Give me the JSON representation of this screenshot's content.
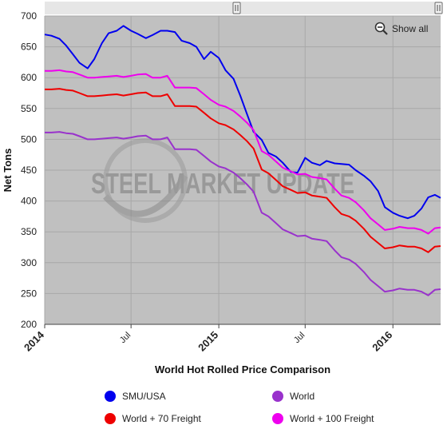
{
  "chart_data": {
    "type": "line",
    "title": "World Hot Rolled Price Comparison",
    "ylabel": "Net Tons",
    "xlabel": "",
    "ylim": [
      200,
      700
    ],
    "yticks": [
      200,
      250,
      300,
      350,
      400,
      450,
      500,
      550,
      600,
      650,
      700
    ],
    "xrange": [
      "2014-01-01",
      "2016-03-15"
    ],
    "xticks": [
      {
        "label": "2014",
        "date": "2014-01-01",
        "major": true
      },
      {
        "label": "Jul",
        "date": "2014-07-01",
        "major": false
      },
      {
        "label": "2015",
        "date": "2015-01-01",
        "major": true
      },
      {
        "label": "Jul",
        "date": "2015-07-01",
        "major": false
      },
      {
        "label": "2016",
        "date": "2016-01-01",
        "major": true
      }
    ],
    "grid": true,
    "legend_position": "bottom",
    "zoom_control": "Show all",
    "watermark": "STEEL MARKET UPDATE",
    "series": [
      {
        "name": "SMU/USA",
        "color": "#0000ee",
        "points": [
          [
            "2014-01-01",
            670
          ],
          [
            "2014-01-15",
            668
          ],
          [
            "2014-02-01",
            663
          ],
          [
            "2014-02-15",
            652
          ],
          [
            "2014-03-01",
            638
          ],
          [
            "2014-03-15",
            624
          ],
          [
            "2014-04-01",
            615
          ],
          [
            "2014-04-15",
            630
          ],
          [
            "2014-05-01",
            656
          ],
          [
            "2014-05-15",
            672
          ],
          [
            "2014-06-01",
            676
          ],
          [
            "2014-06-15",
            684
          ],
          [
            "2014-07-01",
            676
          ],
          [
            "2014-07-15",
            671
          ],
          [
            "2014-08-01",
            664
          ],
          [
            "2014-08-15",
            669
          ],
          [
            "2014-09-01",
            676
          ],
          [
            "2014-09-15",
            676
          ],
          [
            "2014-10-01",
            674
          ],
          [
            "2014-10-15",
            660
          ],
          [
            "2014-11-01",
            656
          ],
          [
            "2014-11-15",
            650
          ],
          [
            "2014-12-01",
            630
          ],
          [
            "2014-12-15",
            642
          ],
          [
            "2015-01-01",
            632
          ],
          [
            "2015-01-15",
            612
          ],
          [
            "2015-02-01",
            598
          ],
          [
            "2015-02-15",
            571
          ],
          [
            "2015-03-01",
            541
          ],
          [
            "2015-03-15",
            512
          ],
          [
            "2015-04-01",
            499
          ],
          [
            "2015-04-15",
            478
          ],
          [
            "2015-05-01",
            472
          ],
          [
            "2015-05-15",
            462
          ],
          [
            "2015-06-01",
            447
          ],
          [
            "2015-06-15",
            446
          ],
          [
            "2015-07-01",
            470
          ],
          [
            "2015-07-15",
            462
          ],
          [
            "2015-08-01",
            458
          ],
          [
            "2015-08-15",
            465
          ],
          [
            "2015-09-01",
            461
          ],
          [
            "2015-09-15",
            460
          ],
          [
            "2015-10-01",
            459
          ],
          [
            "2015-10-15",
            450
          ],
          [
            "2015-11-01",
            441
          ],
          [
            "2015-11-15",
            432
          ],
          [
            "2015-12-01",
            416
          ],
          [
            "2015-12-15",
            390
          ],
          [
            "2016-01-01",
            381
          ],
          [
            "2016-01-15",
            376
          ],
          [
            "2016-02-01",
            372
          ],
          [
            "2016-02-15",
            376
          ],
          [
            "2016-03-01",
            388
          ],
          [
            "2016-03-15",
            406
          ],
          [
            "2016-03-29",
            410
          ],
          [
            "2016-04-10",
            405
          ]
        ]
      },
      {
        "name": "World",
        "color": "#9932cc",
        "points": [
          [
            "2014-01-01",
            511
          ],
          [
            "2014-01-15",
            511
          ],
          [
            "2014-02-01",
            512
          ],
          [
            "2014-02-15",
            510
          ],
          [
            "2014-03-01",
            509
          ],
          [
            "2014-03-15",
            505
          ],
          [
            "2014-04-01",
            500
          ],
          [
            "2014-04-15",
            500
          ],
          [
            "2014-05-01",
            501
          ],
          [
            "2014-05-15",
            502
          ],
          [
            "2014-06-01",
            503
          ],
          [
            "2014-06-15",
            501
          ],
          [
            "2014-07-01",
            503
          ],
          [
            "2014-07-15",
            505
          ],
          [
            "2014-08-01",
            506
          ],
          [
            "2014-08-15",
            500
          ],
          [
            "2014-09-01",
            500
          ],
          [
            "2014-09-15",
            503
          ],
          [
            "2014-10-01",
            484
          ],
          [
            "2014-10-15",
            484
          ],
          [
            "2014-11-01",
            484
          ],
          [
            "2014-11-15",
            483
          ],
          [
            "2014-12-01",
            473
          ],
          [
            "2014-12-15",
            464
          ],
          [
            "2015-01-01",
            456
          ],
          [
            "2015-01-15",
            453
          ],
          [
            "2015-02-01",
            446
          ],
          [
            "2015-02-15",
            437
          ],
          [
            "2015-03-01",
            427
          ],
          [
            "2015-03-15",
            415
          ],
          [
            "2015-04-01",
            381
          ],
          [
            "2015-04-15",
            375
          ],
          [
            "2015-05-01",
            364
          ],
          [
            "2015-05-15",
            354
          ],
          [
            "2015-06-01",
            348
          ],
          [
            "2015-06-15",
            343
          ],
          [
            "2015-07-01",
            344
          ],
          [
            "2015-07-15",
            339
          ],
          [
            "2015-08-01",
            337
          ],
          [
            "2015-08-15",
            335
          ],
          [
            "2015-09-01",
            320
          ],
          [
            "2015-09-15",
            309
          ],
          [
            "2015-10-01",
            305
          ],
          [
            "2015-10-15",
            298
          ],
          [
            "2015-11-01",
            285
          ],
          [
            "2015-11-15",
            272
          ],
          [
            "2015-12-01",
            262
          ],
          [
            "2015-12-15",
            253
          ],
          [
            "2016-01-01",
            255
          ],
          [
            "2016-01-15",
            258
          ],
          [
            "2016-02-01",
            256
          ],
          [
            "2016-02-15",
            256
          ],
          [
            "2016-03-01",
            253
          ],
          [
            "2016-03-15",
            247
          ],
          [
            "2016-03-29",
            256
          ],
          [
            "2016-04-10",
            257
          ]
        ]
      },
      {
        "name": "World + 70 Freight",
        "color": "#ee0000",
        "points": [
          [
            "2014-01-01",
            581
          ],
          [
            "2014-01-15",
            581
          ],
          [
            "2014-02-01",
            582
          ],
          [
            "2014-02-15",
            580
          ],
          [
            "2014-03-01",
            579
          ],
          [
            "2014-03-15",
            575
          ],
          [
            "2014-04-01",
            570
          ],
          [
            "2014-04-15",
            570
          ],
          [
            "2014-05-01",
            571
          ],
          [
            "2014-05-15",
            572
          ],
          [
            "2014-06-01",
            573
          ],
          [
            "2014-06-15",
            571
          ],
          [
            "2014-07-01",
            573
          ],
          [
            "2014-07-15",
            575
          ],
          [
            "2014-08-01",
            576
          ],
          [
            "2014-08-15",
            570
          ],
          [
            "2014-09-01",
            570
          ],
          [
            "2014-09-15",
            573
          ],
          [
            "2014-10-01",
            554
          ],
          [
            "2014-10-15",
            554
          ],
          [
            "2014-11-01",
            554
          ],
          [
            "2014-11-15",
            553
          ],
          [
            "2014-12-01",
            543
          ],
          [
            "2014-12-15",
            534
          ],
          [
            "2015-01-01",
            526
          ],
          [
            "2015-01-15",
            523
          ],
          [
            "2015-02-01",
            516
          ],
          [
            "2015-02-15",
            507
          ],
          [
            "2015-03-01",
            497
          ],
          [
            "2015-03-15",
            485
          ],
          [
            "2015-04-01",
            451
          ],
          [
            "2015-04-15",
            445
          ],
          [
            "2015-05-01",
            434
          ],
          [
            "2015-05-15",
            424
          ],
          [
            "2015-06-01",
            418
          ],
          [
            "2015-06-15",
            413
          ],
          [
            "2015-07-01",
            414
          ],
          [
            "2015-07-15",
            409
          ],
          [
            "2015-08-01",
            407
          ],
          [
            "2015-08-15",
            405
          ],
          [
            "2015-09-01",
            390
          ],
          [
            "2015-09-15",
            379
          ],
          [
            "2015-10-01",
            375
          ],
          [
            "2015-10-15",
            368
          ],
          [
            "2015-11-01",
            355
          ],
          [
            "2015-11-15",
            342
          ],
          [
            "2015-12-01",
            332
          ],
          [
            "2015-12-15",
            323
          ],
          [
            "2016-01-01",
            325
          ],
          [
            "2016-01-15",
            328
          ],
          [
            "2016-02-01",
            326
          ],
          [
            "2016-02-15",
            326
          ],
          [
            "2016-03-01",
            323
          ],
          [
            "2016-03-15",
            317
          ],
          [
            "2016-03-29",
            326
          ],
          [
            "2016-04-10",
            327
          ]
        ]
      },
      {
        "name": "World + 100 Freight",
        "color": "#ee00ee",
        "points": [
          [
            "2014-01-01",
            611
          ],
          [
            "2014-01-15",
            611
          ],
          [
            "2014-02-01",
            612
          ],
          [
            "2014-02-15",
            610
          ],
          [
            "2014-03-01",
            609
          ],
          [
            "2014-03-15",
            605
          ],
          [
            "2014-04-01",
            600
          ],
          [
            "2014-04-15",
            600
          ],
          [
            "2014-05-01",
            601
          ],
          [
            "2014-05-15",
            602
          ],
          [
            "2014-06-01",
            603
          ],
          [
            "2014-06-15",
            601
          ],
          [
            "2014-07-01",
            603
          ],
          [
            "2014-07-15",
            605
          ],
          [
            "2014-08-01",
            606
          ],
          [
            "2014-08-15",
            600
          ],
          [
            "2014-09-01",
            600
          ],
          [
            "2014-09-15",
            603
          ],
          [
            "2014-10-01",
            584
          ],
          [
            "2014-10-15",
            584
          ],
          [
            "2014-11-01",
            584
          ],
          [
            "2014-11-15",
            583
          ],
          [
            "2014-12-01",
            573
          ],
          [
            "2014-12-15",
            564
          ],
          [
            "2015-01-01",
            556
          ],
          [
            "2015-01-15",
            553
          ],
          [
            "2015-02-01",
            546
          ],
          [
            "2015-02-15",
            537
          ],
          [
            "2015-03-01",
            527
          ],
          [
            "2015-03-15",
            515
          ],
          [
            "2015-04-01",
            481
          ],
          [
            "2015-04-15",
            475
          ],
          [
            "2015-05-01",
            464
          ],
          [
            "2015-05-15",
            454
          ],
          [
            "2015-06-01",
            448
          ],
          [
            "2015-06-15",
            443
          ],
          [
            "2015-07-01",
            444
          ],
          [
            "2015-07-15",
            439
          ],
          [
            "2015-08-01",
            437
          ],
          [
            "2015-08-15",
            435
          ],
          [
            "2015-09-01",
            420
          ],
          [
            "2015-09-15",
            409
          ],
          [
            "2015-10-01",
            405
          ],
          [
            "2015-10-15",
            398
          ],
          [
            "2015-11-01",
            385
          ],
          [
            "2015-11-15",
            372
          ],
          [
            "2015-12-01",
            362
          ],
          [
            "2015-12-15",
            353
          ],
          [
            "2016-01-01",
            355
          ],
          [
            "2016-01-15",
            358
          ],
          [
            "2016-02-01",
            356
          ],
          [
            "2016-02-15",
            356
          ],
          [
            "2016-03-01",
            353
          ],
          [
            "2016-03-15",
            347
          ],
          [
            "2016-03-29",
            356
          ],
          [
            "2016-04-10",
            357
          ]
        ]
      }
    ],
    "legend": [
      {
        "name": "SMU/USA",
        "color": "#0000ee"
      },
      {
        "name": "World",
        "color": "#9932cc"
      },
      {
        "name": "World + 70 Freight",
        "color": "#ee0000"
      },
      {
        "name": "World + 100 Freight",
        "color": "#ee00ee"
      }
    ]
  }
}
